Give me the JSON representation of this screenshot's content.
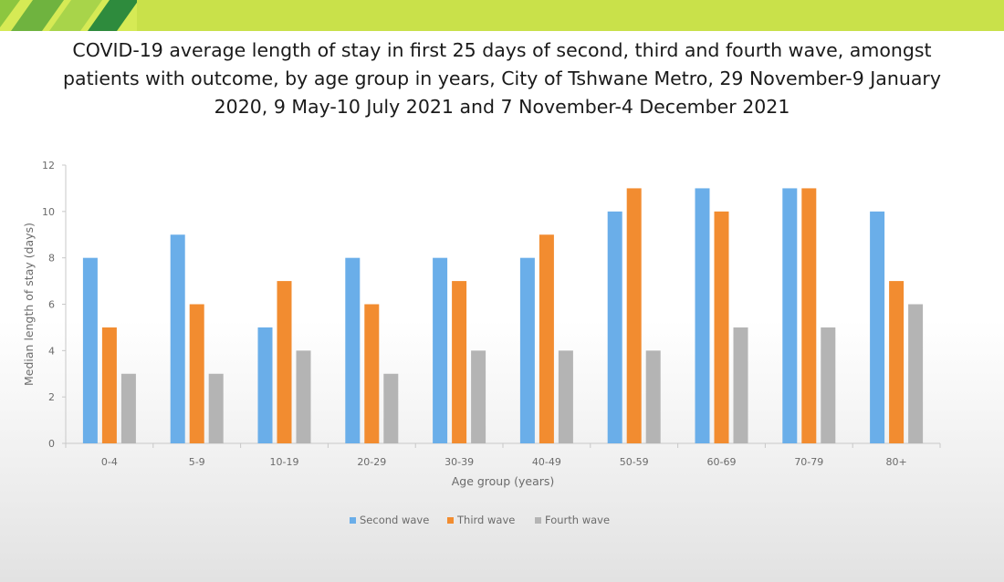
{
  "header": {
    "colors": [
      "#8cc63f",
      "#a8d44a",
      "#c4e03a",
      "#d2e94e"
    ]
  },
  "title_lines": [
    "COVID-19 average length of stay in first 25 days of second, third and fourth wave, amongst",
    "patients with outcome, by age group in years, City of Tshwane Metro, 29 November-9 January",
    "2020, 9 May-10 July 2021 and 7 November-4 December 2021"
  ],
  "chart_data": {
    "type": "bar",
    "xlabel": "Age group (years)",
    "ylabel": "Median length of stay (days)",
    "ylim": [
      0,
      12
    ],
    "yticks": [
      0,
      2,
      4,
      6,
      8,
      10,
      12
    ],
    "categories": [
      "0-4",
      "5-9",
      "10-19",
      "20-29",
      "30-39",
      "40-49",
      "50-59",
      "60-69",
      "70-79",
      "80+"
    ],
    "series": [
      {
        "name": "Second wave",
        "color": "#6aaee9",
        "values": [
          8,
          9,
          5,
          8,
          8,
          8,
          10,
          11,
          11,
          10
        ]
      },
      {
        "name": "Third wave",
        "color": "#f28c30",
        "values": [
          5,
          6,
          7,
          6,
          7,
          9,
          11,
          10,
          11,
          7
        ]
      },
      {
        "name": "Fourth wave",
        "color": "#b4b4b4",
        "values": [
          3,
          3,
          4,
          3,
          4,
          4,
          4,
          5,
          5,
          6
        ]
      }
    ],
    "legend_position": "bottom",
    "grid": false
  }
}
